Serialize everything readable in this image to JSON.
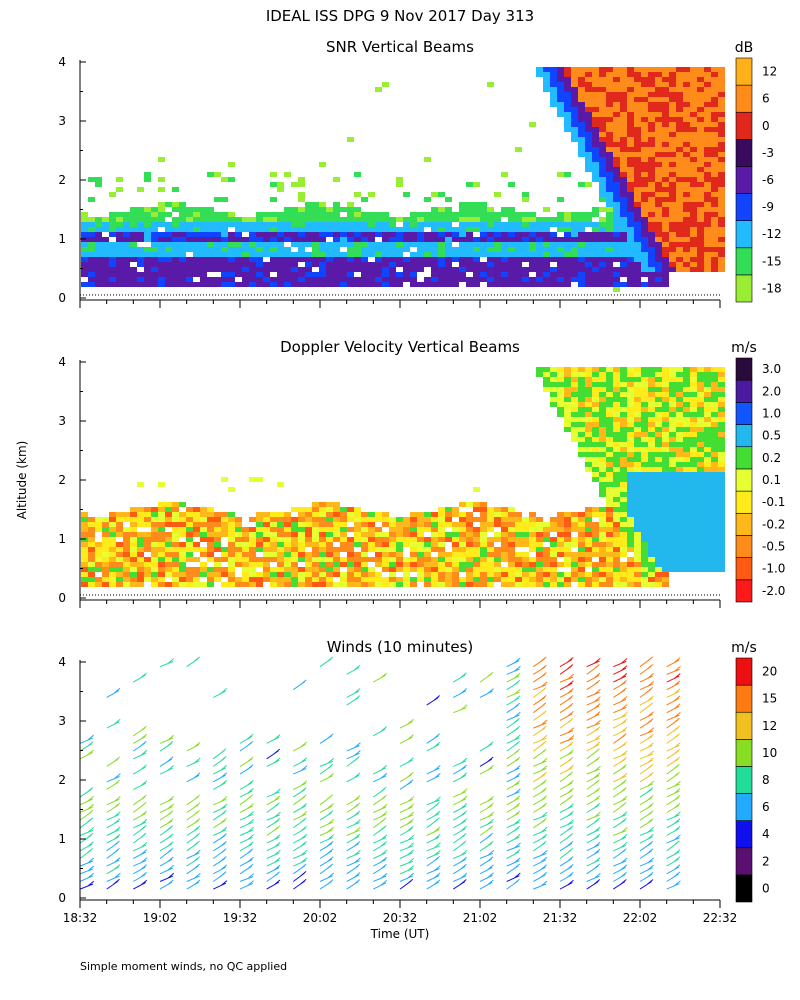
{
  "header": {
    "title": "IDEAL ISS DPG   9 Nov 2017 Day 313"
  },
  "footer": {
    "note": "Simple moment winds, no QC applied"
  },
  "chart_data": [
    {
      "type": "heatmap",
      "title": "SNR Vertical Beams",
      "xlabel": "",
      "ylabel": "",
      "y_ticks": [
        "0",
        "1",
        "2",
        "3",
        "4"
      ],
      "ylim": [
        0,
        4
      ],
      "colorbar": {
        "unit": "dB",
        "tick_labels": [
          "-18",
          "-15",
          "-12",
          "-9",
          "-6",
          "-3",
          "0",
          "6",
          "12"
        ],
        "colors": [
          "#99ee33",
          "#33dd55",
          "#22bbff",
          "#1144ff",
          "#5a1aa8",
          "#3a0a5e",
          "#e0281c",
          "#ff8c1a",
          "#ffb01a"
        ]
      },
      "regions": [
        {
          "feature": "low-level layer",
          "start": "18:32",
          "end": "22:10",
          "alt_km": [
            0.2,
            1.6
          ],
          "snr_db": [
            -18,
            -3
          ]
        },
        {
          "feature": "strong echo",
          "start": "21:20",
          "end": "22:32",
          "alt_km": [
            0.6,
            4.0
          ],
          "snr_db": [
            0,
            12
          ]
        }
      ]
    },
    {
      "type": "heatmap",
      "title": "Doppler Velocity Vertical Beams",
      "xlabel": "",
      "ylabel": "Altitude (km)",
      "y_ticks": [
        "0",
        "1",
        "2",
        "3",
        "4"
      ],
      "ylim": [
        0,
        4
      ],
      "colorbar": {
        "unit": "m/s",
        "tick_labels": [
          "-2.0",
          "-1.0",
          "-0.5",
          "-0.2",
          "-0.1",
          "0.1",
          "0.2",
          "0.5",
          "1.0",
          "2.0",
          "3.0"
        ],
        "colors": [
          "#ff1a1a",
          "#ff5a14",
          "#ff8c1a",
          "#ffb81a",
          "#ffea1a",
          "#e6ff33",
          "#44dd33",
          "#22b8ee",
          "#1155ff",
          "#4a1aa0",
          "#2a0a3a"
        ]
      },
      "regions": [
        {
          "feature": "low-level layer",
          "start": "18:32",
          "end": "22:10",
          "alt_km": [
            0.2,
            1.6
          ],
          "vel_ms": [
            -1.0,
            0.1
          ]
        },
        {
          "feature": "upper echo",
          "start": "21:20",
          "end": "22:32",
          "alt_km": [
            0.3,
            4.0
          ],
          "vel_ms": [
            -0.2,
            1.0
          ]
        }
      ]
    },
    {
      "type": "scatter",
      "title": "Winds (10 minutes)",
      "xlabel": "Time (UT)",
      "ylabel": "",
      "x_ticks": [
        "18:32",
        "19:02",
        "19:32",
        "20:02",
        "20:32",
        "21:02",
        "21:32",
        "22:02",
        "22:32"
      ],
      "y_ticks": [
        "0",
        "1",
        "2",
        "3",
        "4"
      ],
      "ylim": [
        0,
        4
      ],
      "colorbar": {
        "unit": "m/s",
        "tick_labels": [
          "0",
          "2",
          "4",
          "6",
          "8",
          "10",
          "12",
          "15",
          "20"
        ],
        "colors": [
          "#000000",
          "#5a1070",
          "#1010ee",
          "#22aaff",
          "#22dd99",
          "#88dd22",
          "#f0c020",
          "#ff7a10",
          "#ee1010"
        ]
      },
      "profiles_every_minutes": 10,
      "first_profile": "18:32",
      "last_profile": "22:12",
      "max_height_km": 4.0
    }
  ]
}
